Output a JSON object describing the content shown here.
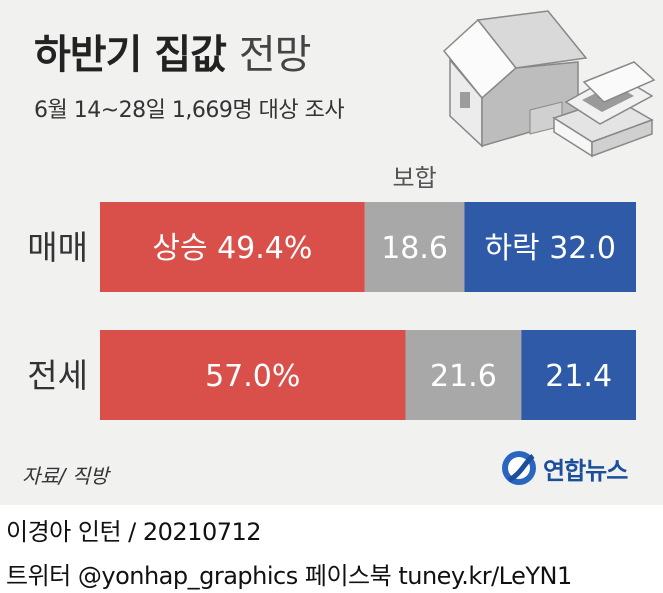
{
  "header": {
    "title_bold": "하반기 집값",
    "title_light": "전망",
    "subtitle": "6월 14~28일 1,669명 대상 조사"
  },
  "chart_data": {
    "type": "bar",
    "orientation": "horizontal",
    "stacked": true,
    "categories": [
      "매매",
      "전세"
    ],
    "series": [
      {
        "name": "상승",
        "values": [
          49.4,
          57.0
        ],
        "color": "#d9504b"
      },
      {
        "name": "보합",
        "values": [
          18.6,
          21.6
        ],
        "color": "#a8a8a8"
      },
      {
        "name": "하락",
        "values": [
          32.0,
          21.4
        ],
        "color": "#2e5aa8"
      }
    ],
    "labels": [
      [
        "상승 49.4%",
        "18.6",
        "하락 32.0"
      ],
      [
        "57.0%",
        "21.6",
        "21.4"
      ]
    ],
    "annotation": "보합",
    "xlim": [
      0,
      100
    ]
  },
  "source": "자료/ 직방",
  "logo_text": "연합뉴스",
  "credit": "이경아 인턴 / 20210712",
  "social": "트위터 @yonhap_graphics  페이스북 tuney.kr/LeYN1"
}
